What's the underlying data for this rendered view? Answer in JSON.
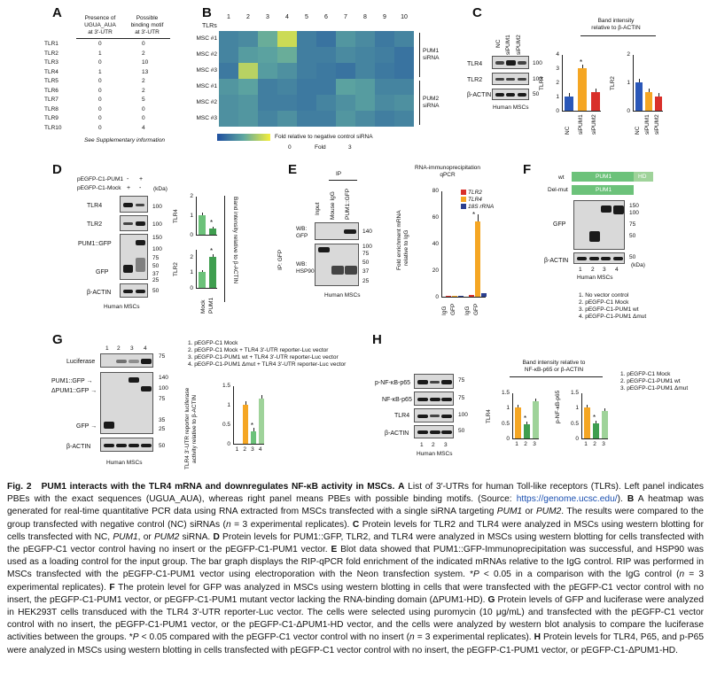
{
  "panels": {
    "a": "A",
    "b": "B",
    "c": "C",
    "d": "D",
    "e": "E",
    "f": "F",
    "g": "G",
    "h": "H"
  },
  "panelA": {
    "col1_header": [
      "Presence of",
      "UGUA_AUA",
      "at 3'-UTR"
    ],
    "col2_header": [
      "Possible",
      "binding motif",
      "at 3'-UTR"
    ],
    "rows": [
      {
        "tlr": "TLR1",
        "presence": "0",
        "motif": "0"
      },
      {
        "tlr": "TLR2",
        "presence": "1",
        "motif": "2"
      },
      {
        "tlr": "TLR3",
        "presence": "0",
        "motif": "10"
      },
      {
        "tlr": "TLR4",
        "presence": "1",
        "motif": "13"
      },
      {
        "tlr": "TLR5",
        "presence": "0",
        "motif": "2"
      },
      {
        "tlr": "TLR6",
        "presence": "0",
        "motif": "2"
      },
      {
        "tlr": "TLR7",
        "presence": "0",
        "motif": "5"
      },
      {
        "tlr": "TLR8",
        "presence": "0",
        "motif": "0"
      },
      {
        "tlr": "TLR9",
        "presence": "0",
        "motif": "0"
      },
      {
        "tlr": "TLR10",
        "presence": "0",
        "motif": "4"
      }
    ],
    "note": "See Supplementary information"
  },
  "panelB": {
    "tlr_header": "TLRs",
    "columns": [
      "1",
      "2",
      "3",
      "4",
      "5",
      "6",
      "7",
      "8",
      "9",
      "10"
    ],
    "rows": [
      "MSC #1",
      "MSC #2",
      "MSC #3",
      "MSC #1",
      "MSC #2",
      "MSC #3"
    ],
    "group1": [
      "PUM1",
      "siRNA"
    ],
    "group2": [
      "PUM2",
      "siRNA"
    ],
    "scale_label": "Fold relative to negative control siRNA",
    "scale_min": "0",
    "scale_mid": "Fold",
    "scale_max": "3",
    "colors": {
      "low": "#1f4fa0",
      "mid": "#5fa8a0",
      "high": "#f4ee3a"
    }
  },
  "panelC": {
    "lanes": [
      "NC",
      "siPUM1",
      "siPUM2"
    ],
    "rows": [
      "TLR4",
      "TLR2",
      "β-ACTIN"
    ],
    "kda": [
      "100",
      "100",
      "50"
    ],
    "cell": "Human MSCs",
    "band_title": [
      "Band intensity",
      "relative to β-ACTIN"
    ],
    "chart1_ylabel": "TLR4",
    "chart2_ylabel": "TLR2",
    "yticks1": [
      "0",
      "1",
      "2",
      "3",
      "4"
    ],
    "yticks2": [
      "0",
      "1",
      "2"
    ],
    "star": "*"
  },
  "panelD": {
    "treat1": "pEGFP-C1-PUM1",
    "treat2": "pEGFP-C1-Mock",
    "signs1": [
      "-",
      "+"
    ],
    "signs2": [
      "+",
      "-"
    ],
    "kda_label": "(kDa)",
    "rows": [
      "TLR4",
      "TLR2",
      "PUM1::GFP",
      "GFP",
      "β-ACTIN"
    ],
    "kda": [
      "100",
      "100",
      "150",
      "100",
      "75",
      "50",
      "37",
      "25",
      "50"
    ],
    "cell": "Human MSCs",
    "ylabel1": "TLR4",
    "ylabel2": "TLR2",
    "xlabels": [
      "Mock",
      "PUM1"
    ],
    "side_label": "Band intensity relative to β-ACTIN",
    "yticks": [
      "0",
      "1",
      "2"
    ],
    "star": "*"
  },
  "panelE": {
    "ip_label": "IP",
    "lanes": [
      "Input",
      "Mouse IgG",
      "PUM1::GFP"
    ],
    "wb1": [
      "WB:",
      "GFP"
    ],
    "wb2": [
      "WB:",
      "HSP90"
    ],
    "side": "IP: GFP",
    "kda": [
      "140",
      "100",
      "75",
      "50",
      "37",
      "25",
      "140"
    ],
    "cell": "Human MSCs",
    "chart_title": [
      "RNA-immunoprecipitation",
      "qPCR"
    ],
    "ylabel": [
      "Fold enrichment mRNA",
      "relative to IgG"
    ],
    "yticks": [
      "0",
      "20",
      "40",
      "60",
      "80"
    ],
    "legend": [
      "TLR2",
      "TLR4",
      "18S rRNA"
    ],
    "xlabels": [
      "IgG",
      "GFP",
      "IgG",
      "GFP"
    ],
    "star": "*"
  },
  "panelF": {
    "wt": "wt",
    "delmut": "Del-mut",
    "pum1": "PUM1",
    "hd": "HD",
    "gfp": "GFP",
    "actin": "β-ACTIN",
    "kda": [
      "150",
      "100",
      "75",
      "50",
      "50"
    ],
    "kda_label": "(kDa)",
    "lanes": [
      "1",
      "2",
      "3",
      "4"
    ],
    "cell": "Human MSCs",
    "legend": [
      "1. No vector control",
      "2. pEGFP-C1 Mock",
      "3. pEGFP-C1-PUM1 wt",
      "4. pEGFP-C1-PUM1 Δmut"
    ]
  },
  "panelG": {
    "lanes": [
      "1",
      "2",
      "3",
      "4"
    ],
    "rows": [
      "Luciferase",
      "PUM1::GFP →",
      "ΔPUM1::GFP →",
      "GFP →",
      "β-ACTIN"
    ],
    "kda": [
      "75",
      "140",
      "100",
      "75",
      "35",
      "25",
      "50"
    ],
    "legend": [
      "1. pEGFP-C1 Mock",
      "2. pEGFP-C1 Mock + TLR4 3'-UTR reporter-Luc vector",
      "3. pEGFP-C1-PUM1 wt + TLR4 3'-UTR reporter-Luc vector",
      "4. pEGFP-C1-PUM1 Δmut + TLR4 3'-UTR reporter-Luc vector"
    ],
    "cell": "Human MSCs",
    "ylabel": [
      "TLR4 3'-UTR reporter luciferase",
      "activity relative to β-ACTIN"
    ],
    "yticks": [
      "0",
      "0.5",
      "1",
      "1.5"
    ],
    "xlabels": [
      "1",
      "2",
      "3",
      "4"
    ],
    "star": "*"
  },
  "panelH": {
    "rows": [
      "p-NF-κB-p65",
      "NF-κB-p65",
      "TLR4",
      "β-ACTIN"
    ],
    "kda": [
      "75",
      "75",
      "100",
      "50"
    ],
    "lanes": [
      "1",
      "2",
      "3"
    ],
    "cell": "Human MSCs",
    "band_title": [
      "Band intensity relative to",
      "NF-κB-p65 or β-ACTIN"
    ],
    "ylabel1": "TLR4",
    "ylabel2": "p-NF-κB-p65",
    "yticks": [
      "0",
      "0.5",
      "1",
      "1.5"
    ],
    "xlabels": [
      "1",
      "2",
      "3"
    ],
    "legend": [
      "1. pEGFP-C1 Mock",
      "2. pEGFP-C1-PUM1 wt",
      "3. pEGFP-C1-PUM1 Δmut"
    ],
    "star": "*"
  },
  "chart_data": [
    {
      "type": "heatmap",
      "title": "Fold relative to negative control siRNA",
      "x": [
        "1",
        "2",
        "3",
        "4",
        "5",
        "6",
        "7",
        "8",
        "9",
        "10"
      ],
      "y": [
        "MSC #1",
        "MSC #2",
        "MSC #3",
        "MSC #1",
        "MSC #2",
        "MSC #3"
      ],
      "values": [
        [
          0.9,
          1.0,
          1.6,
          2.6,
          0.8,
          0.6,
          1.2,
          1.0,
          0.7,
          0.9
        ],
        [
          0.9,
          1.3,
          1.4,
          1.6,
          0.8,
          0.8,
          1.0,
          0.9,
          0.8,
          0.6
        ],
        [
          0.7,
          2.4,
          1.3,
          1.1,
          0.8,
          0.7,
          0.6,
          0.9,
          0.7,
          0.6
        ],
        [
          1.2,
          1.4,
          0.8,
          0.9,
          0.7,
          0.7,
          1.4,
          1.3,
          0.9,
          0.9
        ],
        [
          1.1,
          1.2,
          0.8,
          0.8,
          0.7,
          0.9,
          1.1,
          1.3,
          1.0,
          1.1
        ],
        [
          1.1,
          1.2,
          0.9,
          1.1,
          0.8,
          0.8,
          1.2,
          1.0,
          0.8,
          0.9
        ]
      ],
      "range": [
        0,
        3
      ]
    },
    {
      "type": "bar",
      "title": "TLR4",
      "categories": [
        "NC",
        "siPUM1",
        "siPUM2"
      ],
      "values": [
        1.0,
        3.0,
        1.3
      ],
      "colors": [
        "#2a57b8",
        "#f5a623",
        "#d9302a"
      ],
      "ylim": [
        0,
        4
      ]
    },
    {
      "type": "bar",
      "title": "TLR2",
      "categories": [
        "NC",
        "siPUM1",
        "siPUM2"
      ],
      "values": [
        1.0,
        0.65,
        0.5
      ],
      "colors": [
        "#2a57b8",
        "#f5a623",
        "#d9302a"
      ],
      "ylim": [
        0,
        2
      ]
    },
    {
      "type": "bar",
      "title": "TLR4",
      "categories": [
        "Mock",
        "PUM1"
      ],
      "values": [
        1.0,
        0.3
      ],
      "colors": [
        "#6cc27a",
        "#3f9e4f"
      ],
      "ylim": [
        0,
        2
      ]
    },
    {
      "type": "bar",
      "title": "TLR2",
      "categories": [
        "Mock",
        "PUM1"
      ],
      "values": [
        1.0,
        2.0
      ],
      "colors": [
        "#6cc27a",
        "#3f9e4f"
      ],
      "ylim": [
        0,
        2.5
      ]
    },
    {
      "type": "bar",
      "title": "RNA-immunoprecipitation qPCR",
      "categories": [
        "IgG",
        "GFP"
      ],
      "series": [
        {
          "name": "TLR2",
          "values": [
            0.5,
            1.5
          ],
          "color": "#d9302a"
        },
        {
          "name": "TLR4",
          "values": [
            0.5,
            57
          ],
          "color": "#f5a623"
        },
        {
          "name": "18S rRNA",
          "values": [
            1.0,
            3.0
          ],
          "color": "#2a3f8f"
        }
      ],
      "ylim": [
        0,
        80
      ]
    },
    {
      "type": "bar",
      "title": "TLR4 3'-UTR reporter luciferase activity",
      "categories": [
        "1",
        "2",
        "3",
        "4"
      ],
      "values": [
        0,
        1.0,
        0.32,
        1.15
      ],
      "colors": [
        "#cccccc",
        "#f5a623",
        "#6cc27a",
        "#9fd39a"
      ],
      "ylim": [
        0,
        1.5
      ]
    },
    {
      "type": "bar",
      "title": "TLR4",
      "categories": [
        "1",
        "2",
        "3"
      ],
      "values": [
        1.0,
        0.45,
        1.2
      ],
      "colors": [
        "#f5a623",
        "#3f9e4f",
        "#9fd39a"
      ],
      "ylim": [
        0,
        1.5
      ]
    },
    {
      "type": "bar",
      "title": "p-NF-κB-p65",
      "categories": [
        "1",
        "2",
        "3"
      ],
      "values": [
        1.0,
        0.5,
        0.9
      ],
      "colors": [
        "#f5a623",
        "#3f9e4f",
        "#9fd39a"
      ],
      "ylim": [
        0,
        1.5
      ]
    }
  ],
  "caption": {
    "fig": "Fig. 2",
    "title": "PUM1 interacts with the TLR4 mRNA and downregulates NF-κB activity in MSCs.",
    "p1": " List of 3′-UTRs for human Toll-like receptors (TLRs). Left panel indicates PBEs with the exact sequences (UGUA_AUA), whereas right panel means PBEs with possible binding motifs. (Source: ",
    "link": "https://genome.ucsc.edu/",
    "p2": "). ",
    "p3": " A heatmap was generated for real-time quantitative PCR data using RNA extracted from MSCs transfected with a single siRNA targeting ",
    "pum1": "PUM1",
    "or": " or ",
    "pum2": "PUM2",
    "p4": ". The results were compared to the group transfected with negative control (NC) siRNAs (",
    "n3": "n",
    "p5": " = 3 experimental replicates). ",
    "p6": " Protein levels for TLR2 and TLR4 were analyzed in MSCs using western blotting for cells transfected with NC, ",
    "p7": ", or ",
    "p8": " siRNA. ",
    "p9": " Protein levels for PUM1::GFP, TLR2, and TLR4 were analyzed in MSCs using western blotting for cells transfected with the pEGFP-C1 vector control having no insert or the pEGFP-C1-PUM1 vector. ",
    "p10": " Blot data showed that PUM1::GFP-Immunoprecipitation was successful, and HSP90 was used as a loading control for the input group. The bar graph displays the RIP-qPCR fold enrichment of the indicated mRNAs relative to the IgG control. RIP was performed in MSCs transfected with the pEGFP-C1-PUM1 vector using electroporation with the Neon transfection system. *",
    "p11": "P",
    "p12": " < 0.05 in a comparison with the IgG control (",
    "p13": " = 3 experimental replicates). ",
    "p14": " The protein level for GFP was analyzed in MSCs using western blotting in cells that were transfected with the pEGFP-C1 vector control with no insert, the pEGFP-C1-PUM1 vector, or pEGFP-C1-PUM1 mutant vector lacking the RNA-binding domain (ΔPUM1-HD). ",
    "p15": " Protein levels of GFP and luciferase were analyzed in HEK293T cells transduced with the TLR4 3′-UTR reporter-Luc vector. The cells were selected using puromycin (10 μg/mL) and transfected with the pEGFP-C1 vector control with no insert, the pEGFP-C1-PUM1 vector, or the pEGFP-C1-ΔPUM1-HD vector, and the cells were analyzed by western blot analysis to compare the luciferase activities between the groups. *",
    "p16": " < 0.05 compared with the pEGFP-C1 vector control with no insert (",
    "p17": " = 3 experimental replicates). ",
    "p18": " Protein levels for TLR4, P65, and p-P65 were analyzed in MSCs using western blotting in cells transfected with pEGFP-C1 vector control with no insert, the pEGFP-C1-PUM1 vector, or pEGFP-C1-ΔPUM1-HD."
  }
}
